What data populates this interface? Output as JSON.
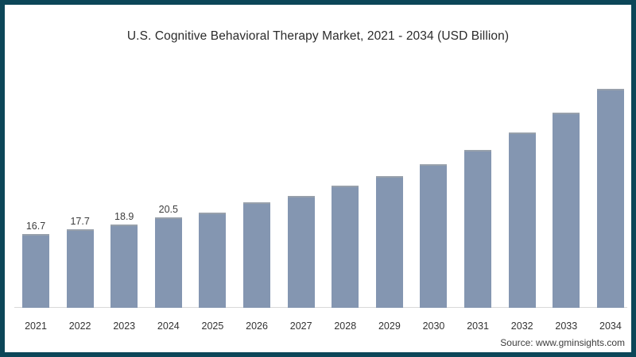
{
  "theme": {
    "frame_color": "#0c4658",
    "background": "#ffffff",
    "bar_color": "#8496b1",
    "bar_top_edge_color": "#97a0ab",
    "axis_line_color": "#d9d9d9",
    "title_color": "#2b2b2b",
    "label_color": "#3d3d3d"
  },
  "header": {
    "title": "U.S. Cognitive Behavioral Therapy Market, 2021 - 2034 (USD Billion)"
  },
  "footer": {
    "source": "Source: www.gminsights.com"
  },
  "chart_data": {
    "type": "bar",
    "title": "U.S. Cognitive Behavioral Therapy Market, 2021 - 2034 (USD Billion)",
    "unit": "USD Billion",
    "categories": [
      "2021",
      "2022",
      "2023",
      "2024",
      "2025",
      "2026",
      "2027",
      "2028",
      "2029",
      "2030",
      "2031",
      "2032",
      "2033",
      "2034"
    ],
    "values": [
      16.7,
      17.7,
      18.9,
      20.5,
      21.5,
      23.9,
      25.3,
      27.6,
      29.8,
      32.5,
      35.7,
      39.7,
      44.2,
      49.6
    ],
    "data_labels": [
      "16.7",
      "17.7",
      "18.9",
      "20.5",
      "",
      "",
      "",
      "",
      "",
      "",
      "",
      "",
      "",
      ""
    ],
    "xlabel": "",
    "ylabel": "",
    "ylim": [
      0,
      50
    ],
    "grid": false,
    "legend": false,
    "source": "Source: www.gminsights.com"
  }
}
